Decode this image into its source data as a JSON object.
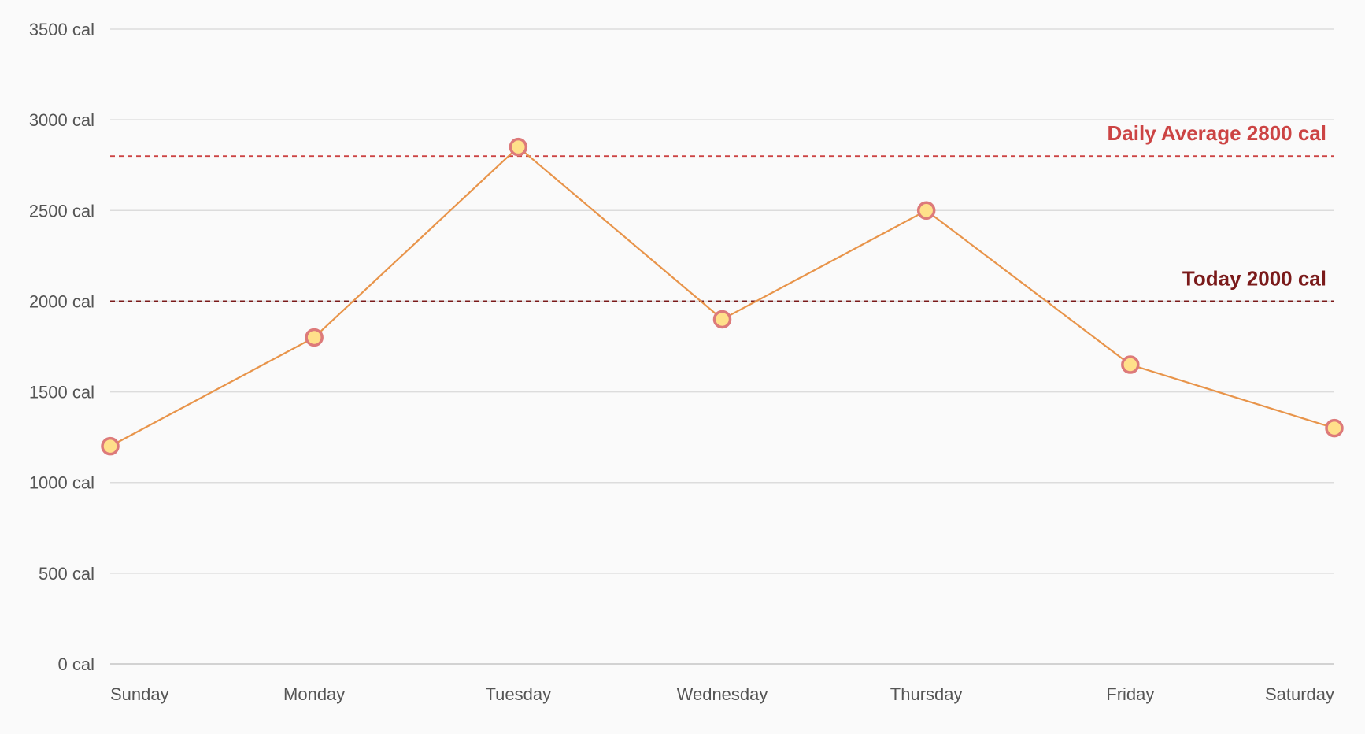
{
  "chart_data": {
    "type": "line",
    "categories": [
      "Sunday",
      "Monday",
      "Tuesday",
      "Wednesday",
      "Thursday",
      "Friday",
      "Saturday"
    ],
    "series": [
      {
        "values": [
          1200,
          1800,
          2850,
          1900,
          2500,
          1650,
          1300
        ]
      }
    ],
    "ylim": [
      0,
      3500
    ],
    "y_ticks": [
      0,
      500,
      1000,
      1500,
      2000,
      2500,
      3000,
      3500
    ],
    "y_tick_labels": [
      "0 cal",
      "500 cal",
      "1000 cal",
      "1500 cal",
      "2000 cal",
      "2500 cal",
      "3000 cal",
      "3500 cal"
    ],
    "grid": true,
    "legend": "none",
    "reference_lines": [
      {
        "label": "Daily Average 2800 cal",
        "value": 2800,
        "color": "#cc4444",
        "style": "dashed"
      },
      {
        "label": "Today 2000 cal",
        "value": 2000,
        "color": "#7a1a1a",
        "style": "dashed"
      }
    ],
    "colors": {
      "line": "#e8944a",
      "marker_fill": "#ffe08a",
      "marker_stroke": "#dd7a7a",
      "grid": "#dcdcdc",
      "tick_text": "#555555"
    }
  }
}
